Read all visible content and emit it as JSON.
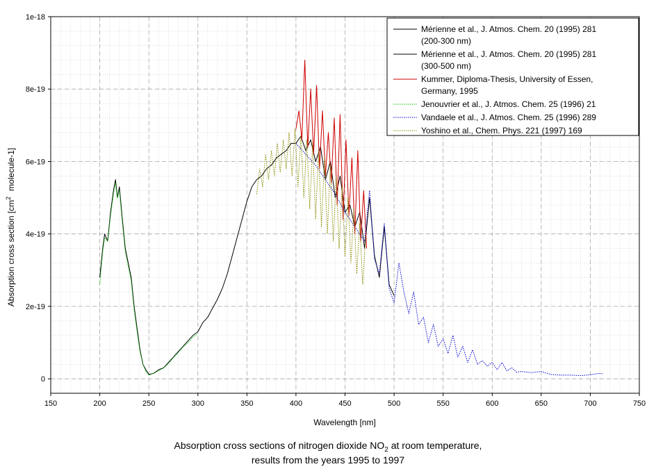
{
  "caption": {
    "line1_prefix": "Absorption cross sections of nitrogen dioxide NO",
    "line1_sub": "2",
    "line1_suffix": " at room temperature,",
    "line2": "results from the years 1995 to 1997"
  },
  "chart_data": {
    "type": "line",
    "xlabel": "Wavelength [nm]",
    "ylabel_prefix": "Absorption cross section [cm",
    "ylabel_sup": "2",
    "ylabel_suffix": "molecule-1]",
    "xlim": [
      150,
      750
    ],
    "ylim": [
      -4e-20,
      1e-18
    ],
    "x_ticks": [
      150,
      200,
      250,
      300,
      350,
      400,
      450,
      500,
      550,
      600,
      650,
      700,
      750
    ],
    "x_tick_labels": [
      "150",
      "200",
      "250",
      "300",
      "350",
      "400",
      "450",
      "500",
      "550",
      "600",
      "650",
      "700",
      "750"
    ],
    "y_ticks": [
      0,
      2e-19,
      4e-19,
      6e-19,
      8e-19,
      1e-18
    ],
    "y_tick_labels": [
      "0",
      "2e-19",
      "4e-19",
      "6e-19",
      "8e-19",
      "1e-18"
    ],
    "grid": true,
    "legend_position": "top-right",
    "series": [
      {
        "name": "Mérienne et al., J. Atmos. Chem. 20 (1995) 281 (200-300 nm)",
        "legend_lines": [
          "Mérienne et al., J. Atmos. Chem. 20 (1995) 281",
          "(200-300 nm)"
        ],
        "color": "#000000",
        "dash": "solid",
        "x": [
          200,
          203,
          205,
          208,
          211,
          214,
          216,
          218,
          220,
          223,
          226,
          229,
          232,
          235,
          238,
          241,
          244,
          247,
          250,
          255,
          260,
          265,
          270,
          275,
          280,
          285,
          290,
          295,
          300
        ],
        "y": [
          2.8e-19,
          3.6e-19,
          4e-19,
          3.8e-19,
          4.6e-19,
          5.2e-19,
          5.5e-19,
          5e-19,
          5.3e-19,
          4.4e-19,
          3.6e-19,
          3.2e-19,
          2.8e-19,
          2e-19,
          1.4e-19,
          8e-20,
          4e-20,
          2.5e-20,
          1.2e-20,
          1.5e-20,
          2.5e-20,
          3e-20,
          4.5e-20,
          6e-20,
          7.5e-20,
          9e-20,
          1.05e-19,
          1.2e-19,
          1.3e-19
        ]
      },
      {
        "name": "Mérienne et al., J. Atmos. Chem. 20 (1995) 281 (300-500 nm)",
        "legend_lines": [
          "Mérienne et al., J. Atmos. Chem. 20 (1995) 281",
          "(300-500 nm)"
        ],
        "color": "#000000",
        "dash": "solid",
        "x": [
          300,
          305,
          310,
          315,
          320,
          325,
          330,
          335,
          340,
          345,
          350,
          355,
          360,
          365,
          370,
          375,
          380,
          385,
          390,
          395,
          400,
          405,
          410,
          415,
          420,
          425,
          430,
          435,
          440,
          445,
          450,
          455,
          460,
          465,
          470,
          475,
          480,
          485,
          490,
          495,
          500
        ],
        "y": [
          1.3e-19,
          1.55e-19,
          1.7e-19,
          1.95e-19,
          2.2e-19,
          2.5e-19,
          2.9e-19,
          3.4e-19,
          3.9e-19,
          4.4e-19,
          4.9e-19,
          5.3e-19,
          5.5e-19,
          5.6e-19,
          5.8e-19,
          5.9e-19,
          6.1e-19,
          6.2e-19,
          6.3e-19,
          6.5e-19,
          6.5e-19,
          6.7e-19,
          6.3e-19,
          6.6e-19,
          6e-19,
          6.4e-19,
          5.5e-19,
          6e-19,
          5e-19,
          5.6e-19,
          4.6e-19,
          4.8e-19,
          4.2e-19,
          4.6e-19,
          3.6e-19,
          5e-19,
          3.4e-19,
          2.8e-19,
          4.2e-19,
          2.6e-19,
          2.3e-19
        ]
      },
      {
        "name": "Kummer, Diploma-Thesis, University of Essen, Germany, 1995",
        "legend_lines": [
          "Kummer, Diploma-Thesis, University of Essen,",
          "Germany, 1995"
        ],
        "color": "#d00000",
        "dash": "solid",
        "x": [
          400,
          403,
          406,
          409,
          412,
          415,
          418,
          421,
          424,
          427,
          430,
          433,
          436,
          439,
          442,
          445,
          448,
          451,
          454,
          457,
          460,
          463,
          466,
          469,
          472
        ],
        "y": [
          6.9e-19,
          7.4e-19,
          6.6e-19,
          8.8e-19,
          6.4e-19,
          8e-19,
          6.2e-19,
          8.1e-19,
          5.8e-19,
          7.4e-19,
          5.6e-19,
          6.8e-19,
          5.4e-19,
          7.2e-19,
          4.8e-19,
          7.3e-19,
          4.4e-19,
          6.6e-19,
          4.5e-19,
          6.1e-19,
          4e-19,
          6.3e-19,
          3.8e-19,
          5.2e-19,
          3.6e-19
        ]
      },
      {
        "name": "Jenouvrier et al., J. Atmos. Chem. 25 (1996) 21",
        "legend_lines": [
          "Jenouvrier et al., J. Atmos. Chem. 25 (1996) 21"
        ],
        "color": "#00c000",
        "dash": "dotted",
        "x": [
          200,
          203,
          205,
          208,
          211,
          214,
          216,
          218,
          220,
          223,
          226,
          229,
          232,
          235,
          238,
          241,
          244,
          247,
          250,
          255,
          260,
          265,
          270,
          275,
          280,
          285,
          290,
          295,
          300
        ],
        "y": [
          2.6e-19,
          3.5e-19,
          3.9e-19,
          3.8e-19,
          4.5e-19,
          5.1e-19,
          5.4e-19,
          5e-19,
          5.2e-19,
          4.3e-19,
          3.5e-19,
          3.1e-19,
          2.7e-19,
          1.9e-19,
          1.3e-19,
          7.5e-20,
          4e-20,
          2e-20,
          1e-20,
          1.5e-20,
          2.2e-20,
          3e-20,
          4.2e-20,
          5.8e-20,
          7.2e-20,
          8.8e-20,
          1e-19,
          1.15e-19,
          1.25e-19
        ]
      },
      {
        "name": "Vandaele et al., J. Atmos. Chem. 25 (1996) 289",
        "legend_lines": [
          "Vandaele et al., J. Atmos. Chem. 25 (1996) 289"
        ],
        "color": "#0000d0",
        "dash": "dotted",
        "x": [
          400,
          410,
          420,
          430,
          440,
          450,
          460,
          470,
          475,
          480,
          485,
          490,
          495,
          500,
          505,
          510,
          515,
          520,
          525,
          530,
          535,
          540,
          545,
          550,
          555,
          560,
          565,
          570,
          575,
          580,
          585,
          590,
          595,
          600,
          605,
          610,
          615,
          620,
          625,
          630,
          640,
          650,
          660,
          670,
          680,
          690,
          700,
          710,
          713
        ],
        "y": [
          6.5e-19,
          6.2e-19,
          5.9e-19,
          5.5e-19,
          5.1e-19,
          4.6e-19,
          4.2e-19,
          3.8e-19,
          5.2e-19,
          3.3e-19,
          2.9e-19,
          4.3e-19,
          2.5e-19,
          2.1e-19,
          3.2e-19,
          2.4e-19,
          1.8e-19,
          2.4e-19,
          1.5e-19,
          1.7e-19,
          1e-19,
          1.5e-19,
          9e-20,
          1.1e-19,
          7e-20,
          1.2e-19,
          6e-20,
          9e-20,
          4.5e-20,
          8e-20,
          4e-20,
          5e-20,
          3.5e-20,
          4.5e-20,
          2.5e-20,
          4.5e-20,
          2.2e-20,
          3e-20,
          1.8e-20,
          2e-20,
          1.7e-20,
          2e-20,
          1.2e-20,
          1e-20,
          1e-20,
          9e-21,
          1.1e-20,
          1.5e-20,
          1.3e-20
        ]
      },
      {
        "name": "Yoshino et al., Chem. Phys. 221 (1997) 169",
        "legend_lines": [
          "Yoshino et al., Chem. Phys. 221 (1997) 169"
        ],
        "color": "#8a8a00",
        "dash": "dotted",
        "x": [
          360,
          363,
          366,
          369,
          372,
          375,
          378,
          381,
          384,
          387,
          390,
          393,
          396,
          399,
          402,
          405,
          408,
          411,
          414,
          417,
          420,
          423,
          426,
          429,
          432,
          435,
          438,
          441,
          444,
          447,
          450,
          453,
          456,
          459,
          462,
          465,
          468,
          471
        ],
        "y": [
          5.1e-19,
          5.8e-19,
          5.3e-19,
          6.2e-19,
          5.5e-19,
          6.3e-19,
          5.6e-19,
          6.5e-19,
          5.7e-19,
          6.6e-19,
          5.8e-19,
          6.8e-19,
          5.6e-19,
          6.9e-19,
          5.3e-19,
          6.7e-19,
          5e-19,
          6.6e-19,
          4.7e-19,
          6.5e-19,
          4.4e-19,
          6.3e-19,
          4.2e-19,
          6.1e-19,
          4e-19,
          5.9e-19,
          3.8e-19,
          5.6e-19,
          3.6e-19,
          5.3e-19,
          3.4e-19,
          5e-19,
          3.2e-19,
          4.7e-19,
          2.9e-19,
          4.3e-19,
          2.6e-19,
          3.9e-19
        ]
      }
    ]
  }
}
